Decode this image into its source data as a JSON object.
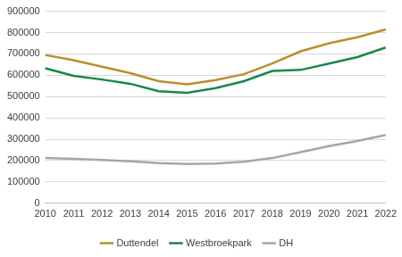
{
  "chart_data": {
    "type": "line",
    "categories": [
      "2010",
      "2011",
      "2012",
      "2013",
      "2014",
      "2015",
      "2016",
      "2017",
      "2018",
      "2019",
      "2020",
      "2021",
      "2022"
    ],
    "series": [
      {
        "name": "Duttendel",
        "color": "#B8902C",
        "values": [
          695000,
          670000,
          640000,
          610000,
          572000,
          558000,
          577000,
          605000,
          655000,
          712000,
          750000,
          778000,
          815000
        ]
      },
      {
        "name": "Westbroekpark",
        "color": "#17894A",
        "values": [
          633000,
          597000,
          580000,
          560000,
          525000,
          518000,
          540000,
          572000,
          620000,
          625000,
          655000,
          685000,
          730000
        ]
      },
      {
        "name": "DH",
        "color": "#A6A6A6",
        "values": [
          212000,
          208000,
          203000,
          197000,
          188000,
          184000,
          186000,
          195000,
          212000,
          240000,
          268000,
          292000,
          320000
        ]
      }
    ],
    "ylim": [
      0,
      900000
    ],
    "yticks": [
      0,
      100000,
      200000,
      300000,
      400000,
      500000,
      600000,
      700000,
      800000,
      900000
    ],
    "grid": true,
    "legend": "bottom"
  }
}
